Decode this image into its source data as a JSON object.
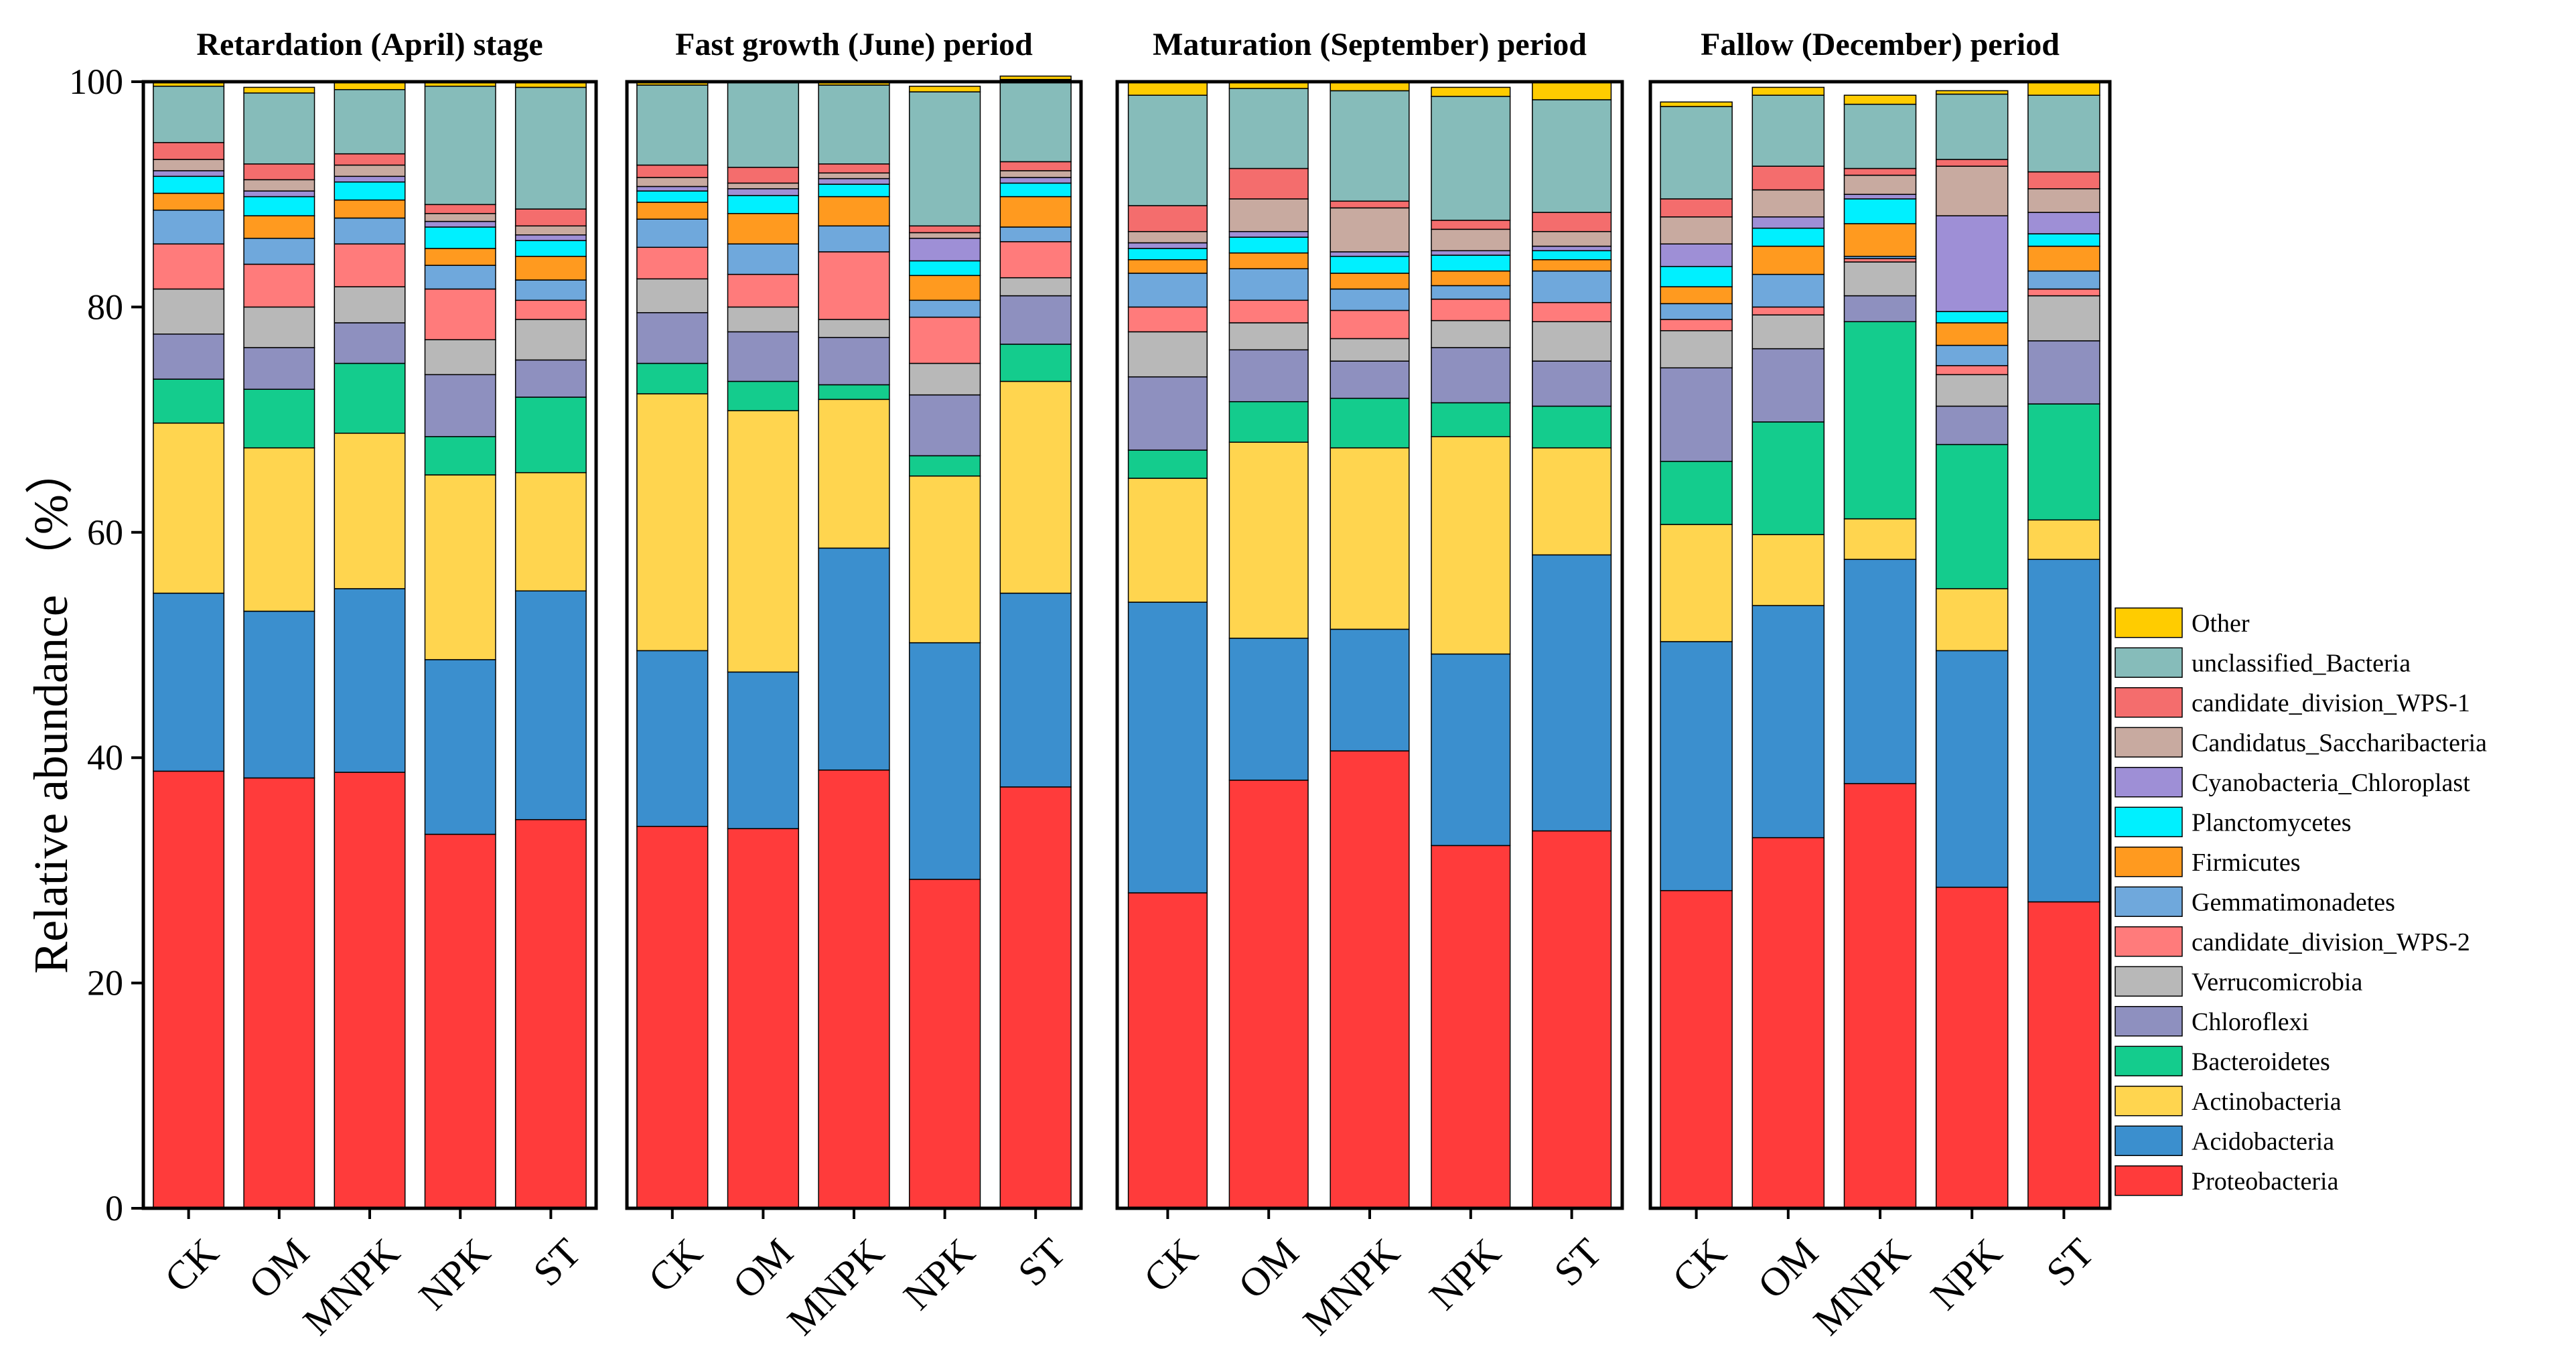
{
  "chart_data": {
    "type": "bar",
    "stacked": true,
    "ylabel": "Relative abundance （%）",
    "ylim": [
      0,
      100
    ],
    "yticks": [
      0,
      20,
      40,
      60,
      80,
      100
    ],
    "categories": [
      "CK",
      "OM",
      "MNPK",
      "NPK",
      "ST"
    ],
    "series": [
      {
        "name": "Proteobacteria",
        "color": "#ff3b3b"
      },
      {
        "name": "Acidobacteria",
        "color": "#3b8fce"
      },
      {
        "name": "Actinobacteria",
        "color": "#ffd54f"
      },
      {
        "name": "Bacteroidetes",
        "color": "#14cc8d"
      },
      {
        "name": "Chloroflexi",
        "color": "#8e90bf"
      },
      {
        "name": "Verrucomicrobia",
        "color": "#b8b8b8"
      },
      {
        "name": "candidate_division_WPS-2",
        "color": "#ff7b7b"
      },
      {
        "name": "Gemmatimonadetes",
        "color": "#6fa8dc"
      },
      {
        "name": "Firmicutes",
        "color": "#ff9a1f"
      },
      {
        "name": "Planctomycetes",
        "color": "#00f0ff"
      },
      {
        "name": "Cyanobacteria_Chloroplast",
        "color": "#9e8fd6"
      },
      {
        "name": "Candidatus_Saccharibacteria",
        "color": "#c8aaa0"
      },
      {
        "name": "candidate_division_WPS-1",
        "color": "#f46d6d"
      },
      {
        "name": "unclassified_Bacteria",
        "color": "#86bcba"
      },
      {
        "name": "Other",
        "color": "#ffcc00"
      }
    ],
    "legend_order": [
      "Other",
      "unclassified_Bacteria",
      "candidate_division_WPS-1",
      "Candidatus_Saccharibacteria",
      "Cyanobacteria_Chloroplast",
      "Planctomycetes",
      "Firmicutes",
      "Gemmatimonadetes",
      "candidate_division_WPS-2",
      "Verrucomicrobia",
      "Chloroflexi",
      "Bacteroidetes",
      "Actinobacteria",
      "Acidobacteria",
      "Proteobacteria"
    ],
    "legend_position": "right",
    "panels": [
      {
        "title": "Retardation (April) stage",
        "bars": {
          "CK": [
            38.8,
            15.8,
            15.1,
            3.9,
            4.0,
            4.0,
            4.0,
            3.0,
            1.5,
            1.5,
            0.5,
            1.0,
            1.5,
            5.0,
            0.4
          ],
          "OM": [
            38.2,
            14.8,
            14.5,
            5.2,
            3.7,
            3.6,
            3.8,
            2.3,
            2.0,
            1.7,
            0.5,
            1.0,
            1.4,
            6.3,
            0.5
          ],
          "MNPK": [
            38.7,
            16.3,
            13.8,
            6.2,
            3.6,
            3.2,
            3.8,
            2.3,
            1.6,
            1.6,
            0.5,
            1.0,
            1.0,
            5.7,
            0.7
          ],
          "NPK": [
            33.2,
            15.5,
            16.4,
            3.4,
            5.5,
            3.1,
            4.5,
            2.1,
            1.5,
            1.9,
            0.5,
            0.7,
            0.8,
            10.5,
            0.4
          ],
          "ST": [
            34.5,
            20.3,
            10.5,
            6.7,
            3.3,
            3.6,
            1.7,
            1.8,
            2.1,
            1.4,
            0.5,
            0.8,
            1.5,
            10.8,
            0.5
          ]
        }
      },
      {
        "title": "Fast growth (June) period",
        "bars": {
          "CK": [
            33.9,
            15.6,
            22.8,
            2.7,
            4.5,
            3.0,
            2.8,
            2.5,
            1.5,
            1.0,
            0.4,
            0.8,
            1.1,
            7.1,
            0.3
          ],
          "OM": [
            33.7,
            13.9,
            23.2,
            2.6,
            4.4,
            2.2,
            2.9,
            2.7,
            2.7,
            1.6,
            0.6,
            0.5,
            1.4,
            7.5,
            0.1
          ],
          "MNPK": [
            38.9,
            19.7,
            13.2,
            1.3,
            4.2,
            1.6,
            6.0,
            2.3,
            2.6,
            1.1,
            0.5,
            0.5,
            0.8,
            7.0,
            0.3
          ],
          "NPK": [
            29.2,
            21.0,
            14.8,
            1.8,
            5.4,
            2.8,
            4.1,
            1.5,
            2.2,
            1.3,
            2.0,
            0.5,
            0.6,
            11.9,
            0.5
          ],
          "ST": [
            37.4,
            17.2,
            18.8,
            3.3,
            4.3,
            1.6,
            3.2,
            1.3,
            2.7,
            1.2,
            0.5,
            0.6,
            0.8,
            7.3,
            0.3
          ]
        }
      },
      {
        "title": "Maturation (September) period",
        "bars": {
          "CK": [
            28.0,
            25.8,
            11.0,
            2.5,
            6.5,
            4.0,
            2.2,
            3.0,
            1.2,
            1.0,
            0.5,
            1.0,
            2.3,
            9.8,
            1.2
          ],
          "OM": [
            38.0,
            12.6,
            17.4,
            3.6,
            4.6,
            2.4,
            2.0,
            2.8,
            1.4,
            1.4,
            0.5,
            2.9,
            2.7,
            7.1,
            0.6
          ],
          "MNPK": [
            40.6,
            10.8,
            16.1,
            4.4,
            3.3,
            2.0,
            2.5,
            1.9,
            1.4,
            1.5,
            0.4,
            3.9,
            0.6,
            9.8,
            0.7
          ],
          "NPK": [
            32.2,
            17.0,
            19.3,
            3.0,
            4.9,
            2.4,
            1.9,
            1.2,
            1.3,
            1.4,
            0.4,
            1.9,
            0.8,
            11.0,
            0.8
          ],
          "ST": [
            33.5,
            24.5,
            9.5,
            3.7,
            4.0,
            3.5,
            1.7,
            2.8,
            1.0,
            0.8,
            0.4,
            1.3,
            1.7,
            10.0,
            1.6
          ]
        }
      },
      {
        "title": "Fallow (December) period",
        "bars": {
          "CK": [
            28.2,
            22.1,
            10.4,
            5.6,
            8.3,
            3.3,
            1.0,
            1.4,
            1.5,
            1.8,
            2.0,
            2.4,
            1.6,
            8.2,
            0.4
          ],
          "OM": [
            32.9,
            20.6,
            6.3,
            10.0,
            6.5,
            3.0,
            0.7,
            2.9,
            2.5,
            1.6,
            1.0,
            2.4,
            2.1,
            6.3,
            0.7
          ],
          "MNPK": [
            37.7,
            19.9,
            3.6,
            17.5,
            2.3,
            3.0,
            0.3,
            0.2,
            2.9,
            2.2,
            0.4,
            1.7,
            0.6,
            5.7,
            0.8
          ],
          "NPK": [
            28.5,
            21.0,
            5.5,
            12.8,
            3.4,
            2.8,
            0.8,
            1.8,
            2.0,
            1.0,
            8.5,
            4.4,
            0.6,
            5.8,
            0.3
          ],
          "ST": [
            27.2,
            30.4,
            3.5,
            10.3,
            5.6,
            4.0,
            0.6,
            1.6,
            2.2,
            1.1,
            1.9,
            2.1,
            1.5,
            6.8,
            1.2
          ]
        }
      }
    ]
  }
}
